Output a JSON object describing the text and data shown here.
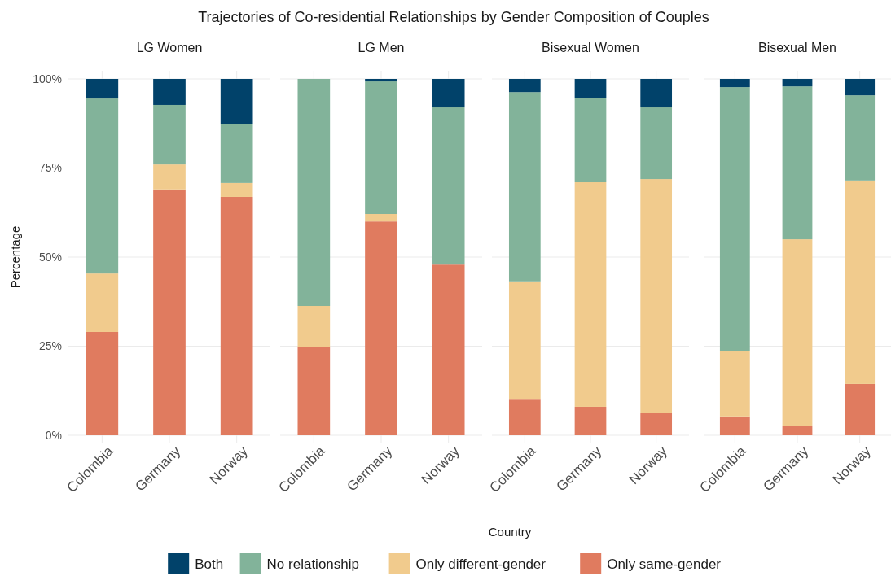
{
  "chart_data": [
    {
      "type": "bar",
      "stacked": true,
      "title": "Trajectories of Co-residential Relationships by Gender Composition of Couples",
      "subtitle": "LG Women",
      "ylabel": "Percentage",
      "categories": [
        "Colombia",
        "Germany",
        "Norway"
      ],
      "ylim": [
        0,
        100
      ],
      "yticks": [
        {
          "value": 0,
          "label": "0%"
        },
        {
          "value": 25,
          "label": "25%"
        },
        {
          "value": 50,
          "label": "50%"
        },
        {
          "value": 75,
          "label": "75%"
        },
        {
          "value": 100,
          "label": "100%"
        }
      ],
      "grid": true,
      "legend": "bottom",
      "series": [
        {
          "name": "Only same-gender",
          "color": "#e07b5f",
          "values": [
            29.0,
            69.0,
            66.9
          ]
        },
        {
          "name": "Only different-gender",
          "color": "#f1cb8d",
          "values": [
            16.4,
            7.0,
            3.9
          ]
        },
        {
          "name": "No relationship",
          "color": "#82b39a",
          "values": [
            49.1,
            16.7,
            16.6
          ]
        },
        {
          "name": "Both",
          "color": "#01426a",
          "values": [
            5.5,
            7.3,
            12.6
          ]
        }
      ]
    },
    {
      "type": "bar",
      "stacked": true,
      "subtitle": "LG Men",
      "categories": [
        "Colombia",
        "Germany",
        "Norway"
      ],
      "ylim": [
        0,
        100
      ],
      "grid": true,
      "tick_labels": "x",
      "series": [
        {
          "color": "#e07b5f",
          "values": [
            24.7,
            60.0,
            47.9
          ]
        },
        {
          "color": "#f1cb8d",
          "values": [
            11.6,
            2.1,
            0
          ]
        },
        {
          "color": "#82b39a",
          "values": [
            63.7,
            37.2,
            44.1
          ]
        },
        {
          "color": "#01426a",
          "values": [
            0,
            0.7,
            8.0
          ]
        }
      ]
    },
    {
      "type": "bar",
      "stacked": true,
      "subtitle": "Bisexual Women",
      "xlabel": "Country",
      "categories": [
        "Colombia",
        "Germany",
        "Norway"
      ],
      "ylim": [
        0,
        100
      ],
      "grid": true,
      "tick_labels": "x",
      "series": [
        {
          "color": "#e07b5f",
          "values": [
            10.0,
            8.0,
            6.2
          ]
        },
        {
          "color": "#f1cb8d",
          "values": [
            33.2,
            63.0,
            65.7
          ]
        },
        {
          "color": "#82b39a",
          "values": [
            53.1,
            23.7,
            20.1
          ]
        },
        {
          "color": "#01426a",
          "values": [
            3.7,
            5.3,
            8.0
          ]
        }
      ]
    },
    {
      "type": "bar",
      "stacked": true,
      "subtitle": "Bisexual Men",
      "categories": [
        "Colombia",
        "Germany",
        "Norway"
      ],
      "ylim": [
        0,
        100
      ],
      "grid": true,
      "tick_labels": "x",
      "series": [
        {
          "color": "#e07b5f",
          "values": [
            5.3,
            2.7,
            14.4
          ]
        },
        {
          "color": "#f1cb8d",
          "values": [
            18.4,
            52.3,
            57.1
          ]
        },
        {
          "color": "#82b39a",
          "values": [
            74.0,
            42.9,
            23.9
          ]
        },
        {
          "color": "#01426a",
          "values": [
            2.3,
            2.1,
            4.6
          ]
        }
      ]
    }
  ]
}
